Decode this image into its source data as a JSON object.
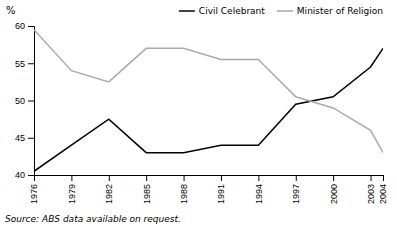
{
  "chart_data": {
    "type": "line",
    "x": [
      1976,
      1979,
      1982,
      1985,
      1988,
      1991,
      1994,
      1997,
      2000,
      2003,
      2004
    ],
    "series": [
      {
        "name": "Civil Celebrant",
        "color": "#000000",
        "values": [
          40.5,
          44.0,
          47.5,
          43.0,
          43.0,
          44.0,
          44.0,
          49.5,
          50.5,
          54.5,
          57.0
        ]
      },
      {
        "name": "Minister of Religion",
        "color": "#aaaaaa",
        "values": [
          59.5,
          54.0,
          52.5,
          57.0,
          57.0,
          55.5,
          55.5,
          50.5,
          49.0,
          46.0,
          43.0
        ]
      }
    ],
    "xlim": [
      1976,
      2004
    ],
    "xticks": [
      1976,
      1979,
      1982,
      1985,
      1988,
      1991,
      1994,
      1997,
      2000,
      2003,
      2004
    ],
    "ylim": [
      40,
      60
    ],
    "yticks": [
      40,
      45,
      50,
      55,
      60
    ],
    "ylabel": "%",
    "annotations": [
      "Source: ABS data available on request."
    ],
    "legend": "upper right",
    "grid": false
  }
}
